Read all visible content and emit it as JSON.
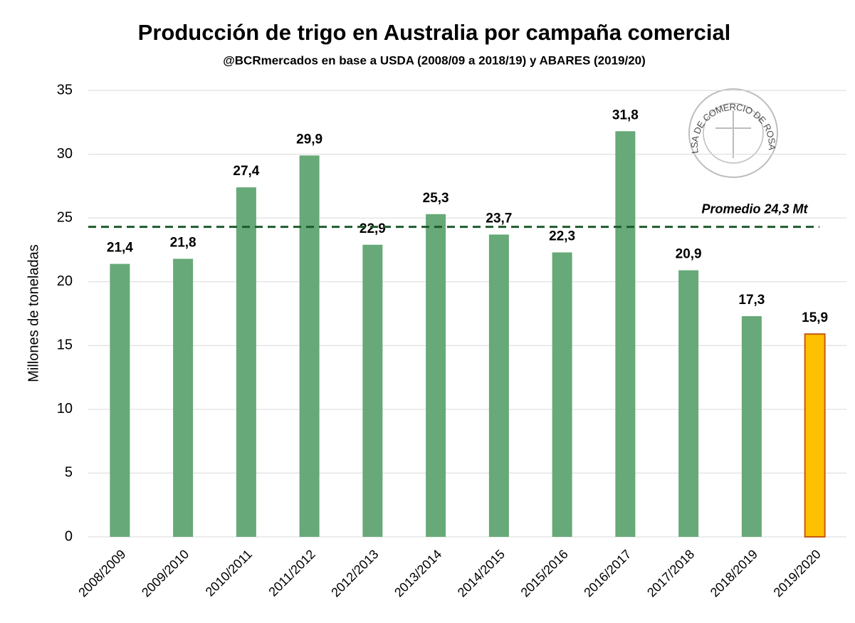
{
  "chart_data": {
    "type": "bar",
    "title": "Producción de trigo en Australia por campaña comercial",
    "subtitle": "@BCRmercados en base a USDA (2008/09 a 2018/19) y ABARES (2019/20)",
    "y_label": "Millones de toneladas",
    "categories": [
      "2008/2009",
      "2009/2010",
      "2010/2011",
      "2011/2012",
      "2012/2013",
      "2013/2014",
      "2014/2015",
      "2015/2016",
      "2016/2017",
      "2017/2018",
      "2018/2019",
      "2019/2020"
    ],
    "values": [
      21.4,
      21.8,
      27.4,
      29.9,
      22.9,
      25.3,
      23.7,
      22.3,
      31.8,
      20.9,
      17.3,
      15.9
    ],
    "value_labels": [
      "21,4",
      "21,8",
      "27,4",
      "29,9",
      "22,9",
      "25,3",
      "23,7",
      "22,3",
      "31,8",
      "20,9",
      "17,3",
      "15,9"
    ],
    "colors": [
      "#67a978",
      "#67a978",
      "#67a978",
      "#67a978",
      "#67a978",
      "#67a978",
      "#67a978",
      "#67a978",
      "#67a978",
      "#67a978",
      "#67a978",
      "#ffc000"
    ],
    "reference_line": {
      "value": 24.3,
      "label": "Promedio 24,3 Mt",
      "color": "#1f5a2d"
    },
    "watermark": "BOLSA DE COMERCIO DE ROSARIO",
    "ylim": [
      0,
      35
    ],
    "yticks": [
      0,
      5,
      10,
      15,
      20,
      25,
      30,
      35
    ],
    "grid": true
  }
}
